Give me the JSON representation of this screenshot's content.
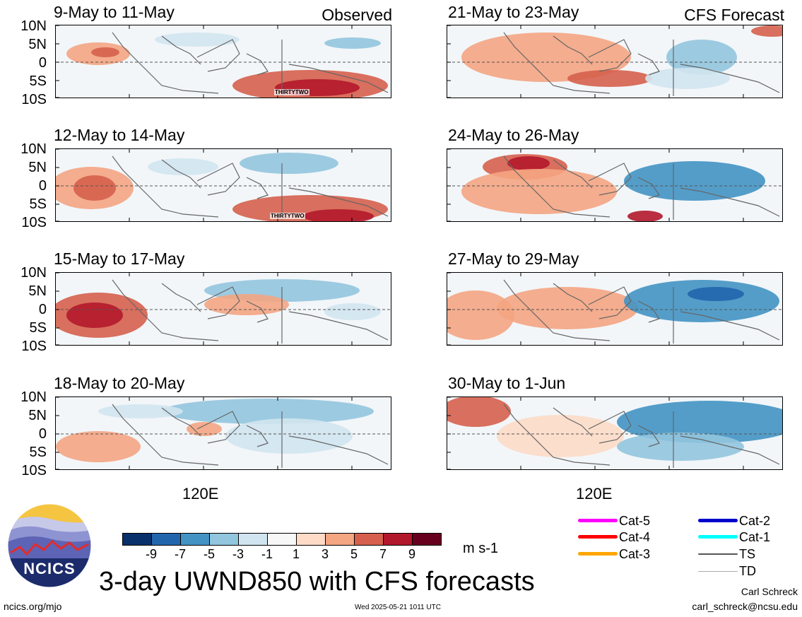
{
  "header": {
    "left_tag": "Observed",
    "right_tag": "CFS Forecast"
  },
  "panels": [
    {
      "title": "9-May to 11-May",
      "storm": "THIRTYTWO"
    },
    {
      "title": "12-May to 14-May",
      "storm": "THIRTYTWO"
    },
    {
      "title": "15-May to 17-May"
    },
    {
      "title": "18-May to 20-May"
    },
    {
      "title": "21-May to 23-May"
    },
    {
      "title": "24-May to 26-May"
    },
    {
      "title": "27-May to 29-May"
    },
    {
      "title": "30-May to 1-Jun"
    }
  ],
  "y_ticks": [
    "10N",
    "5N",
    "0",
    "5S",
    "10S"
  ],
  "x_tick": "120E",
  "colorbar": {
    "labels": [
      "-9",
      "-7",
      "-5",
      "-3",
      "-1",
      "1",
      "3",
      "5",
      "7",
      "9"
    ],
    "colors": [
      "#08306b",
      "#2166ac",
      "#4393c3",
      "#92c5de",
      "#d1e5f0",
      "#f7f7f7",
      "#fddbc7",
      "#f4a582",
      "#d6604d",
      "#b2182b",
      "#67001f"
    ],
    "unit": "m s-1"
  },
  "legend": [
    {
      "label": "Cat-5",
      "color": "#ff00ff"
    },
    {
      "label": "Cat-4",
      "color": "#ff0000"
    },
    {
      "label": "Cat-3",
      "color": "#ffa500"
    },
    {
      "label": "Cat-2",
      "color": "#0000cd"
    },
    {
      "label": "Cat-1",
      "color": "#00ffff"
    },
    {
      "label": "TS",
      "color": "#555555"
    },
    {
      "label": "TD",
      "color": "#aaaaaa"
    }
  ],
  "logo": {
    "text": "NCICS"
  },
  "main_title": "3-day UWND850 with CFS forecasts",
  "footer": {
    "url": "ncics.org/mjo",
    "timestamp": "Wed 2025-05-21 1011 UTC",
    "author": "Carl Schreck",
    "email": "carl_schreck@ncsu.edu"
  }
}
